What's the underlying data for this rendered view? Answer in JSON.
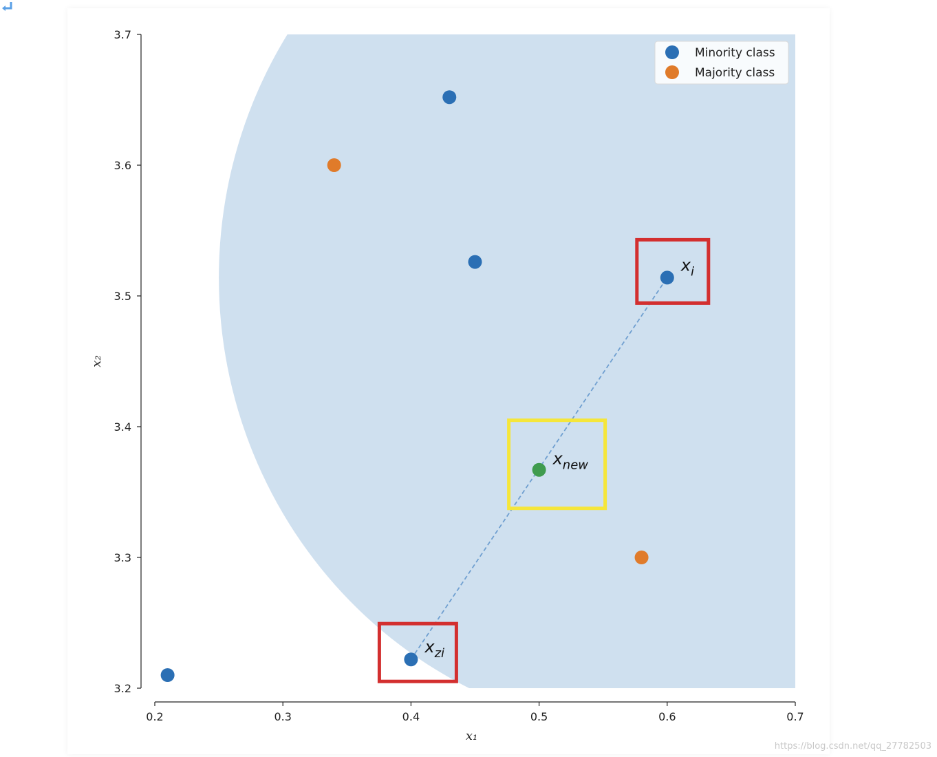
{
  "chart_data": {
    "type": "scatter",
    "title": "",
    "xlabel": "x₁",
    "ylabel": "x₂",
    "xlim": [
      0.2,
      0.7
    ],
    "ylim": [
      3.2,
      3.7
    ],
    "xticks": [
      "0.2",
      "0.3",
      "0.4",
      "0.5",
      "0.6",
      "0.7"
    ],
    "yticks": [
      "3.2",
      "3.3",
      "3.4",
      "3.5",
      "3.6",
      "3.7"
    ],
    "grid": false,
    "legend_position": "top-right",
    "shaded_region": {
      "shape": "circle",
      "center": [
        0.6,
        3.514
      ],
      "radius": 0.35,
      "color": "#cfe0ef"
    },
    "series": [
      {
        "name": "Minority class",
        "color": "#2b6fb4",
        "points": [
          [
            0.43,
            3.652
          ],
          [
            0.45,
            3.526
          ],
          [
            0.6,
            3.514
          ],
          [
            0.4,
            3.222
          ],
          [
            0.21,
            3.21
          ]
        ]
      },
      {
        "name": "Majority class",
        "color": "#e07b2a",
        "points": [
          [
            0.34,
            3.6
          ],
          [
            0.58,
            3.3
          ]
        ]
      }
    ],
    "new_point": {
      "x": 0.5,
      "y": 3.367,
      "color": "#3f9b4e"
    },
    "interpolation_line": {
      "from": [
        0.4,
        3.222
      ],
      "to": [
        0.6,
        3.514
      ],
      "style": "dashed"
    },
    "annotations": [
      {
        "id": "xi",
        "base": "x",
        "sub": "i",
        "x": 0.6,
        "y": 3.514,
        "box_color": "#d32f2f"
      },
      {
        "id": "xzi",
        "base": "x",
        "sub": "zi",
        "x": 0.4,
        "y": 3.222,
        "box_color": "#d32f2f"
      },
      {
        "id": "xnew",
        "base": "x",
        "sub": "new",
        "x": 0.5,
        "y": 3.367,
        "box_color": "#f5e63a"
      }
    ]
  },
  "watermark": "https://blog.csdn.net/qq_27782503"
}
